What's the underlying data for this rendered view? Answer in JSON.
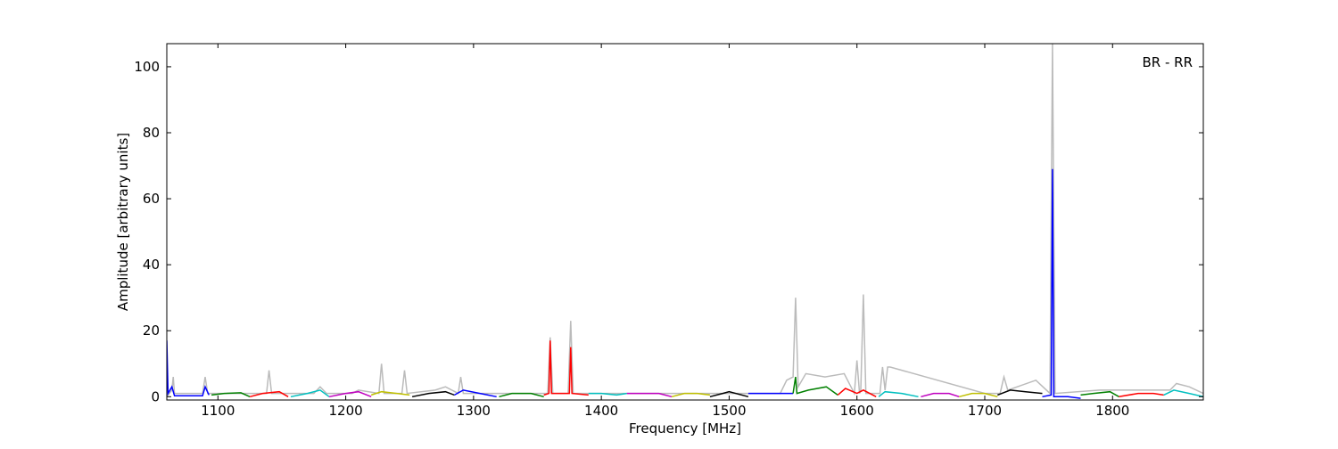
{
  "chart_data": {
    "type": "line",
    "xlabel": "Frequency [MHz]",
    "ylabel": "Amplitude [arbitrary units]",
    "annotation": "BR - RR",
    "xlim": [
      1060,
      1871
    ],
    "ylim": [
      -1,
      107
    ],
    "xticks": [
      1100,
      1200,
      1300,
      1400,
      1500,
      1600,
      1700,
      1800
    ],
    "yticks": [
      0,
      20,
      40,
      60,
      80,
      100
    ],
    "series": [
      {
        "color": "#bbbbbb",
        "x": [
          1060,
          1064,
          1065,
          1066,
          1088,
          1090,
          1092,
          1138,
          1140,
          1142,
          1175,
          1180,
          1185,
          1205,
          1210,
          1226,
          1228,
          1230,
          1244,
          1246,
          1248,
          1270,
          1278,
          1288,
          1290,
          1292,
          1358,
          1360,
          1362,
          1374,
          1376,
          1378,
          1540,
          1545,
          1550,
          1552,
          1554,
          1560,
          1575,
          1590,
          1598,
          1600,
          1602,
          1603,
          1605,
          1607,
          1618,
          1620,
          1622,
          1624,
          1626,
          1700,
          1712,
          1715,
          1718,
          1740,
          1751,
          1753,
          1755,
          1790,
          1845,
          1850,
          1860,
          1871
        ],
        "values": [
          0,
          2,
          6,
          1,
          1,
          6,
          1,
          1,
          8,
          1,
          1,
          3,
          1,
          1,
          2,
          1,
          10,
          1,
          1,
          8,
          1,
          2,
          3,
          1,
          6,
          1,
          1,
          18,
          1,
          1,
          23,
          1,
          1,
          5,
          6,
          30,
          3,
          7,
          6,
          7,
          1,
          11,
          1,
          2,
          31,
          1,
          1,
          9,
          2,
          9,
          9,
          1,
          1,
          6,
          2,
          5,
          1,
          107,
          1,
          2,
          2,
          4,
          3,
          1
        ]
      },
      {
        "color": "#0000ff",
        "x": [
          1060,
          1061,
          1064,
          1066,
          1088,
          1090,
          1093
        ],
        "values": [
          17,
          1,
          3,
          0.3,
          0.3,
          3,
          0.5
        ]
      },
      {
        "color": "#008000",
        "x": [
          1095,
          1105,
          1118,
          1125
        ],
        "values": [
          0.5,
          1,
          1.2,
          0
        ]
      },
      {
        "color": "#ff0000",
        "x": [
          1125,
          1135,
          1148,
          1155
        ],
        "values": [
          0,
          1,
          1.5,
          0
        ]
      },
      {
        "color": "#00bfbf",
        "x": [
          1157,
          1170,
          1180,
          1187
        ],
        "values": [
          0,
          1,
          2,
          0
        ]
      },
      {
        "color": "#bf00bf",
        "x": [
          1187,
          1200,
          1210,
          1220
        ],
        "values": [
          0,
          1,
          1.5,
          0
        ]
      },
      {
        "color": "#bfbf00",
        "x": [
          1220,
          1228,
          1240,
          1250
        ],
        "values": [
          0.5,
          1.5,
          1,
          0.5
        ]
      },
      {
        "color": "#000000",
        "x": [
          1252,
          1265,
          1278,
          1285
        ],
        "values": [
          0,
          1,
          1.5,
          0.5
        ]
      },
      {
        "color": "#0000ff",
        "x": [
          1285,
          1292,
          1305,
          1318
        ],
        "values": [
          0.5,
          2,
          1,
          0
        ]
      },
      {
        "color": "#008000",
        "x": [
          1320,
          1330,
          1345,
          1355
        ],
        "values": [
          0,
          1,
          1,
          0
        ]
      },
      {
        "color": "#ff0000",
        "x": [
          1355,
          1359,
          1360,
          1361,
          1375,
          1376,
          1377,
          1390
        ],
        "values": [
          0.5,
          1,
          17,
          1,
          1,
          15,
          1,
          0.5
        ]
      },
      {
        "color": "#00bfbf",
        "x": [
          1390,
          1400,
          1412,
          1420
        ],
        "values": [
          1,
          1,
          0.5,
          1
        ]
      },
      {
        "color": "#bf00bf",
        "x": [
          1420,
          1430,
          1445,
          1455
        ],
        "values": [
          1,
          1,
          1,
          0
        ]
      },
      {
        "color": "#bfbf00",
        "x": [
          1455,
          1465,
          1475,
          1485
        ],
        "values": [
          0,
          1,
          1,
          0.5
        ]
      },
      {
        "color": "#000000",
        "x": [
          1485,
          1495,
          1500,
          1515
        ],
        "values": [
          0,
          1,
          1.5,
          0
        ]
      },
      {
        "color": "#0000ff",
        "x": [
          1515,
          1530,
          1545,
          1550
        ],
        "values": [
          1,
          1,
          1,
          1
        ]
      },
      {
        "color": "#008000",
        "x": [
          1550,
          1552,
          1553,
          1562,
          1576,
          1585
        ],
        "values": [
          1,
          6,
          1,
          2,
          3,
          0.5
        ]
      },
      {
        "color": "#ff0000",
        "x": [
          1585,
          1591,
          1600,
          1605,
          1615
        ],
        "values": [
          0.5,
          2.5,
          1,
          2,
          0
        ]
      },
      {
        "color": "#00bfbf",
        "x": [
          1617,
          1622,
          1635,
          1648
        ],
        "values": [
          0,
          1.5,
          1,
          0
        ]
      },
      {
        "color": "#bf00bf",
        "x": [
          1650,
          1660,
          1672,
          1680
        ],
        "values": [
          0,
          1,
          1,
          0
        ]
      },
      {
        "color": "#bfbf00",
        "x": [
          1680,
          1690,
          1700,
          1710
        ],
        "values": [
          0,
          1,
          1,
          0
        ]
      },
      {
        "color": "#000000",
        "x": [
          1710,
          1720,
          1732,
          1745
        ],
        "values": [
          0.5,
          2,
          1.5,
          1
        ]
      },
      {
        "color": "#0000ff",
        "x": [
          1745,
          1752,
          1753,
          1754,
          1765,
          1775
        ],
        "values": [
          0,
          0.5,
          69,
          0,
          0,
          -0.5
        ]
      },
      {
        "color": "#008000",
        "x": [
          1775,
          1785,
          1798,
          1805
        ],
        "values": [
          0.5,
          1,
          1.5,
          0
        ]
      },
      {
        "color": "#ff0000",
        "x": [
          1805,
          1820,
          1832,
          1840
        ],
        "values": [
          0,
          1,
          1,
          0.5
        ]
      },
      {
        "color": "#00bfbf",
        "x": [
          1840,
          1848,
          1860,
          1871
        ],
        "values": [
          0.5,
          2,
          1,
          0
        ]
      }
    ]
  }
}
